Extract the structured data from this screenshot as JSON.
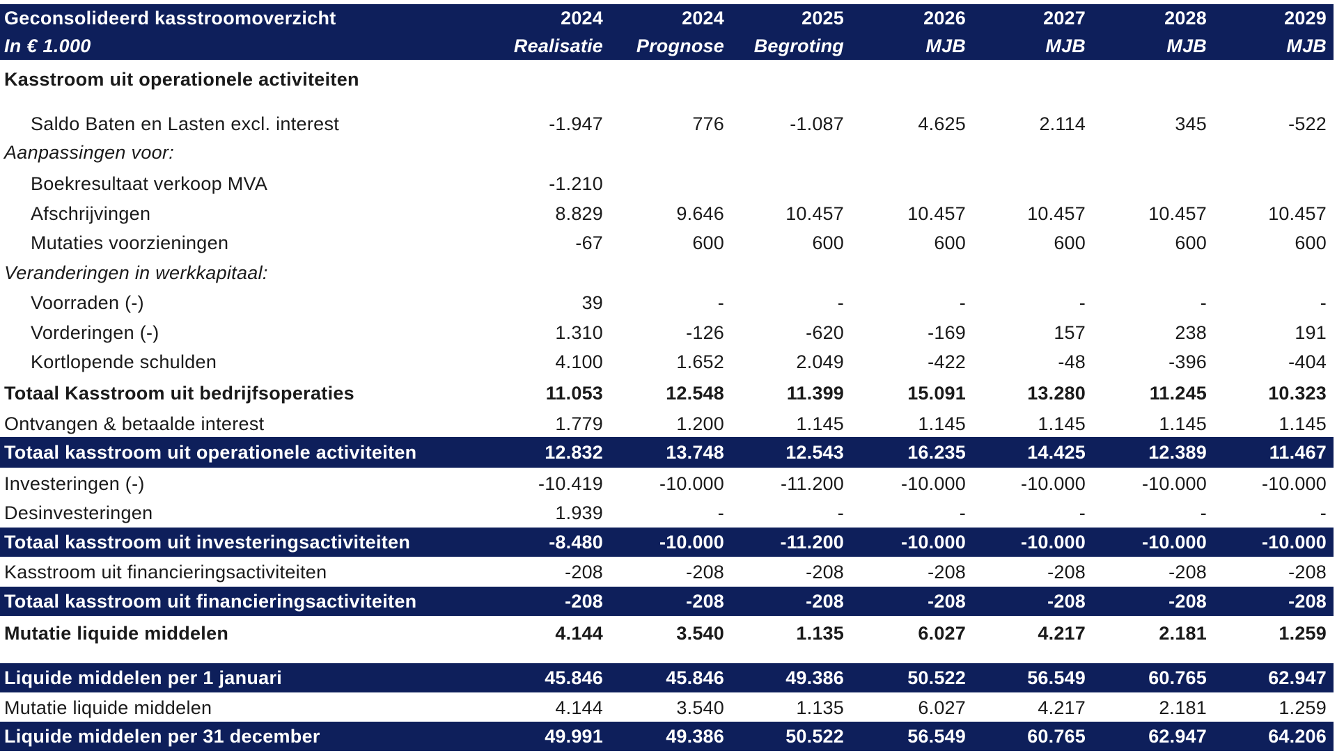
{
  "header": {
    "title": "Geconsolideerd kasstroomoverzicht",
    "unit": "In € 1.000",
    "years": [
      "2024",
      "2024",
      "2025",
      "2026",
      "2027",
      "2028",
      "2029"
    ],
    "types": [
      "Realisatie",
      "Prognose",
      "Begroting",
      "MJB",
      "MJB",
      "MJB",
      "MJB"
    ]
  },
  "rows": [
    {
      "label": "Kasstroom uit operationele activiteiten",
      "values": [
        "",
        "",
        "",
        "",
        "",
        "",
        ""
      ]
    },
    {
      "label": "Saldo Baten en Lasten excl. interest",
      "values": [
        "-1.947",
        "776",
        "-1.087",
        "4.625",
        "2.114",
        "345",
        "-522"
      ]
    },
    {
      "label": "Aanpassingen voor:",
      "values": [
        "",
        "",
        "",
        "",
        "",
        "",
        ""
      ]
    },
    {
      "label": "Boekresultaat verkoop MVA",
      "values": [
        "-1.210",
        "",
        "",
        "",
        "",
        "",
        ""
      ]
    },
    {
      "label": "Afschrijvingen",
      "values": [
        "8.829",
        "9.646",
        "10.457",
        "10.457",
        "10.457",
        "10.457",
        "10.457"
      ]
    },
    {
      "label": "Mutaties voorzieningen",
      "values": [
        "-67",
        "600",
        "600",
        "600",
        "600",
        "600",
        "600"
      ]
    },
    {
      "label": "Veranderingen in werkkapitaal:",
      "values": [
        "",
        "",
        "",
        "",
        "",
        "",
        ""
      ]
    },
    {
      "label": "Voorraden (-)",
      "values": [
        "39",
        "-",
        "-",
        "-",
        "-",
        "-",
        "-"
      ]
    },
    {
      "label": "Vorderingen (-)",
      "values": [
        "1.310",
        "-126",
        "-620",
        "-169",
        "157",
        "238",
        "191"
      ]
    },
    {
      "label": "Kortlopende schulden",
      "values": [
        "4.100",
        "1.652",
        "2.049",
        "-422",
        "-48",
        "-396",
        "-404"
      ]
    },
    {
      "label": "Totaal Kasstroom uit bedrijfsoperaties",
      "values": [
        "11.053",
        "12.548",
        "11.399",
        "15.091",
        "13.280",
        "11.245",
        "10.323"
      ]
    },
    {
      "label": "Ontvangen & betaalde interest",
      "values": [
        "1.779",
        "1.200",
        "1.145",
        "1.145",
        "1.145",
        "1.145",
        "1.145"
      ]
    },
    {
      "label": "Totaal kasstroom uit operationele activiteiten",
      "values": [
        "12.832",
        "13.748",
        "12.543",
        "16.235",
        "14.425",
        "12.389",
        "11.467"
      ]
    },
    {
      "label": "Investeringen (-)",
      "values": [
        "-10.419",
        "-10.000",
        "-11.200",
        "-10.000",
        "-10.000",
        "-10.000",
        "-10.000"
      ]
    },
    {
      "label": "Desinvesteringen",
      "values": [
        "1.939",
        "-",
        "-",
        "-",
        "-",
        "-",
        "-"
      ]
    },
    {
      "label": "Totaal kasstroom uit investeringsactiviteiten",
      "values": [
        "-8.480",
        "-10.000",
        "-11.200",
        "-10.000",
        "-10.000",
        "-10.000",
        "-10.000"
      ]
    },
    {
      "label": "Kasstroom uit financieringsactiviteiten",
      "values": [
        "-208",
        "-208",
        "-208",
        "-208",
        "-208",
        "-208",
        "-208"
      ]
    },
    {
      "label": "Totaal kasstroom uit financieringsactiviteiten",
      "values": [
        "-208",
        "-208",
        "-208",
        "-208",
        "-208",
        "-208",
        "-208"
      ]
    },
    {
      "label": "Mutatie liquide middelen",
      "values": [
        "4.144",
        "3.540",
        "1.135",
        "6.027",
        "4.217",
        "2.181",
        "1.259"
      ]
    },
    {
      "label": "Liquide middelen per 1 januari",
      "values": [
        "45.846",
        "45.846",
        "49.386",
        "50.522",
        "56.549",
        "60.765",
        "62.947"
      ]
    },
    {
      "label": "Mutatie liquide middelen",
      "values": [
        "4.144",
        "3.540",
        "1.135",
        "6.027",
        "4.217",
        "2.181",
        "1.259"
      ]
    },
    {
      "label": "Liquide middelen per 31 december",
      "values": [
        "49.991",
        "49.386",
        "50.522",
        "56.549",
        "60.765",
        "62.947",
        "64.206"
      ]
    }
  ],
  "colors": {
    "band": "#0e1f5b",
    "band_text": "#ffffff",
    "text": "#1a1a1a"
  }
}
